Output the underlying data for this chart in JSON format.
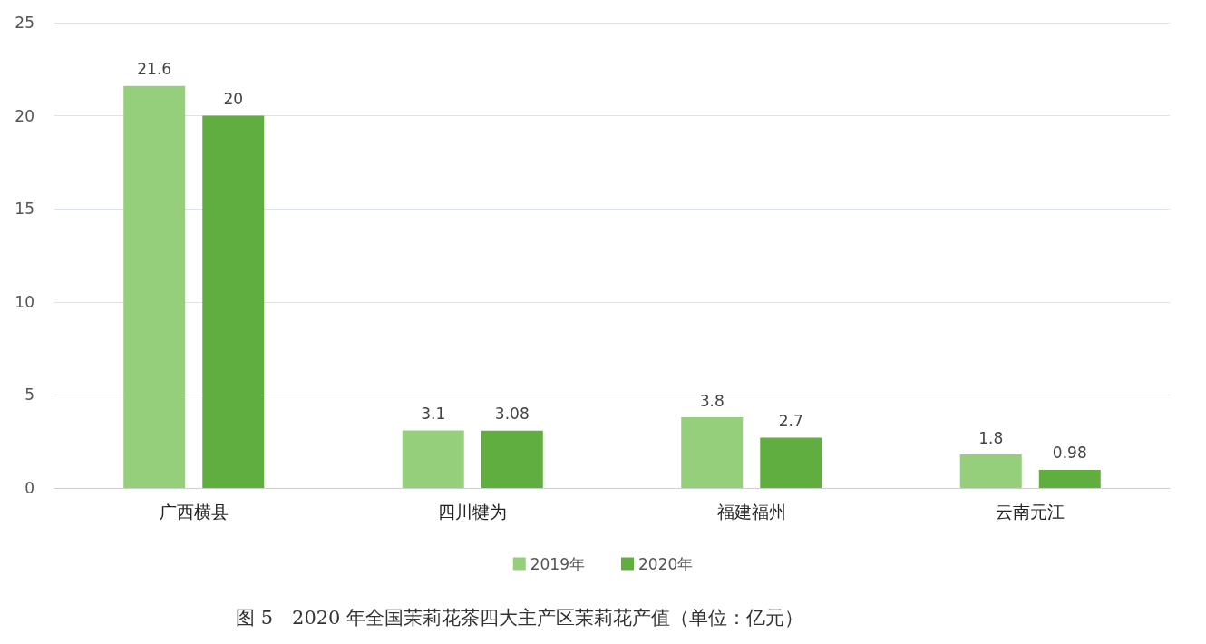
{
  "chart_data": {
    "type": "bar",
    "title": "图 5　2020 年全国茉莉花茶四大主产区茉莉花产值（单位：亿元）",
    "categories": [
      "广西横县",
      "四川犍为",
      "福建福州",
      "云南元江"
    ],
    "series": [
      {
        "name": "2019年",
        "color": "#95cf7c",
        "values": [
          21.6,
          3.1,
          3.8,
          1.8
        ]
      },
      {
        "name": "2020年",
        "color": "#5fae3f",
        "values": [
          20,
          3.08,
          2.7,
          0.98
        ]
      }
    ],
    "ylim": [
      0,
      25
    ],
    "yticks": [
      0,
      5,
      10,
      15,
      20,
      25
    ],
    "grid": "y",
    "legend": "bottom",
    "data_labels": true
  }
}
